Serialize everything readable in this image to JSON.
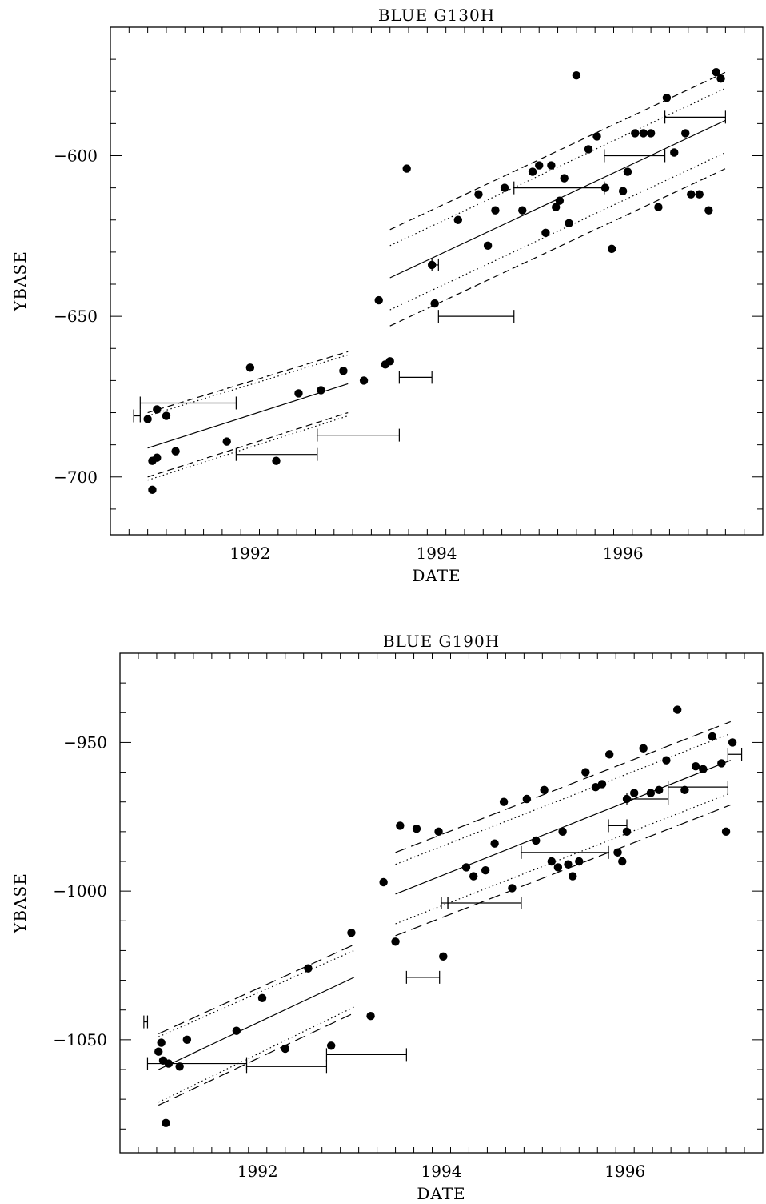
{
  "chart_data": [
    {
      "type": "scatter",
      "title": "BLUE G130H",
      "xlabel": "DATE",
      "ylabel": "YBASE",
      "xlim": [
        1990.5,
        1997.5
      ],
      "ylim": [
        -718,
        -560
      ],
      "x_ticks": [
        1992,
        1994,
        1996
      ],
      "x_tick_labels": [
        "1992",
        "1994",
        "1996"
      ],
      "y_ticks": [
        -600,
        -650,
        -700
      ],
      "y_tick_labels": [
        "−600",
        "−650",
        "−700"
      ],
      "grid": false,
      "legend": "none",
      "points": [
        [
          1990.9,
          -682
        ],
        [
          1990.95,
          -695
        ],
        [
          1991.0,
          -694
        ],
        [
          1991.0,
          -679
        ],
        [
          1991.1,
          -681
        ],
        [
          1991.2,
          -692
        ],
        [
          1990.95,
          -704
        ],
        [
          1991.75,
          -689
        ],
        [
          1992.0,
          -666
        ],
        [
          1992.28,
          -695
        ],
        [
          1992.52,
          -674
        ],
        [
          1992.76,
          -673
        ],
        [
          1993.0,
          -667
        ],
        [
          1993.22,
          -670
        ],
        [
          1993.38,
          -645
        ],
        [
          1993.45,
          -665
        ],
        [
          1993.5,
          -664
        ],
        [
          1993.68,
          -604
        ],
        [
          1993.95,
          -634
        ],
        [
          1993.98,
          -646
        ],
        [
          1994.23,
          -620
        ],
        [
          1994.45,
          -612
        ],
        [
          1994.55,
          -628
        ],
        [
          1994.63,
          -617
        ],
        [
          1994.73,
          -610
        ],
        [
          1994.92,
          -617
        ],
        [
          1995.03,
          -605
        ],
        [
          1995.1,
          -603
        ],
        [
          1995.17,
          -624
        ],
        [
          1995.23,
          -603
        ],
        [
          1995.28,
          -616
        ],
        [
          1995.32,
          -614
        ],
        [
          1995.37,
          -607
        ],
        [
          1995.42,
          -621
        ],
        [
          1995.5,
          -575
        ],
        [
          1995.63,
          -598
        ],
        [
          1995.72,
          -594
        ],
        [
          1995.81,
          -610
        ],
        [
          1995.88,
          -629
        ],
        [
          1996.0,
          -611
        ],
        [
          1996.05,
          -605
        ],
        [
          1996.13,
          -593
        ],
        [
          1996.22,
          -593
        ],
        [
          1996.3,
          -593
        ],
        [
          1996.38,
          -616
        ],
        [
          1996.47,
          -582
        ],
        [
          1996.55,
          -599
        ],
        [
          1996.67,
          -593
        ],
        [
          1996.73,
          -612
        ],
        [
          1996.82,
          -612
        ],
        [
          1996.92,
          -617
        ],
        [
          1997.0,
          -574
        ],
        [
          1997.05,
          -576
        ]
      ],
      "lines": [
        {
          "style": "solid",
          "segments": [
            [
              [
                1990.9,
                -691
              ],
              [
                1993.05,
                -671
              ]
            ],
            [
              [
                1993.5,
                -638
              ],
              [
                1997.1,
                -589
              ]
            ]
          ]
        },
        {
          "style": "dotted",
          "segments": [
            [
              [
                1990.9,
                -681
              ],
              [
                1993.05,
                -662
              ]
            ],
            [
              [
                1990.9,
                -701
              ],
              [
                1993.05,
                -681
              ]
            ],
            [
              [
                1993.5,
                -628
              ],
              [
                1997.1,
                -579
              ]
            ],
            [
              [
                1993.5,
                -648
              ],
              [
                1997.1,
                -599
              ]
            ]
          ]
        },
        {
          "style": "dashed",
          "segments": [
            [
              [
                1990.9,
                -680
              ],
              [
                1993.05,
                -661
              ]
            ],
            [
              [
                1990.9,
                -700
              ],
              [
                1993.05,
                -680
              ]
            ],
            [
              [
                1993.5,
                -623
              ],
              [
                1997.1,
                -574
              ]
            ],
            [
              [
                1993.5,
                -653
              ],
              [
                1997.1,
                -604
              ]
            ]
          ]
        }
      ],
      "error_bars": [
        {
          "x1": 1990.75,
          "x2": 1990.82,
          "y": -681
        },
        {
          "x1": 1990.82,
          "x2": 1991.85,
          "y": -677
        },
        {
          "x1": 1991.85,
          "x2": 1992.72,
          "y": -693
        },
        {
          "x1": 1992.72,
          "x2": 1993.6,
          "y": -687
        },
        {
          "x1": 1993.6,
          "x2": 1993.95,
          "y": -669
        },
        {
          "x1": 1994.02,
          "x2": 1994.83,
          "y": -650
        },
        {
          "x1": 1993.95,
          "x2": 1994.02,
          "y": -634
        },
        {
          "x1": 1994.83,
          "x2": 1995.8,
          "y": -610
        },
        {
          "x1": 1995.8,
          "x2": 1996.45,
          "y": -600
        },
        {
          "x1": 1996.45,
          "x2": 1997.1,
          "y": -588
        }
      ]
    },
    {
      "type": "scatter",
      "title": "BLUE G190H",
      "xlabel": "DATE",
      "ylabel": "YBASE",
      "xlim": [
        1990.5,
        1997.5
      ],
      "ylim": [
        -1088,
        -920
      ],
      "x_ticks": [
        1992,
        1994,
        1996
      ],
      "x_tick_labels": [
        "1992",
        "1994",
        "1996"
      ],
      "y_ticks": [
        -950,
        -1000,
        -1050
      ],
      "y_tick_labels": [
        "−950",
        "−1000",
        "−1050"
      ],
      "grid": false,
      "legend": "none",
      "points": [
        [
          1990.92,
          -1054
        ],
        [
          1990.95,
          -1051
        ],
        [
          1990.97,
          -1057
        ],
        [
          1991.03,
          -1058
        ],
        [
          1991.15,
          -1059
        ],
        [
          1991.23,
          -1050
        ],
        [
          1991.0,
          -1078
        ],
        [
          1991.77,
          -1047
        ],
        [
          1992.05,
          -1036
        ],
        [
          1992.3,
          -1053
        ],
        [
          1992.55,
          -1026
        ],
        [
          1992.8,
          -1052
        ],
        [
          1993.02,
          -1014
        ],
        [
          1993.23,
          -1042
        ],
        [
          1993.37,
          -997
        ],
        [
          1993.5,
          -1017
        ],
        [
          1993.55,
          -978
        ],
        [
          1993.73,
          -979
        ],
        [
          1993.97,
          -980
        ],
        [
          1994.02,
          -1022
        ],
        [
          1994.27,
          -992
        ],
        [
          1994.35,
          -995
        ],
        [
          1994.48,
          -993
        ],
        [
          1994.58,
          -984
        ],
        [
          1994.68,
          -970
        ],
        [
          1994.77,
          -999
        ],
        [
          1994.93,
          -969
        ],
        [
          1995.03,
          -983
        ],
        [
          1995.12,
          -966
        ],
        [
          1995.2,
          -990
        ],
        [
          1995.27,
          -992
        ],
        [
          1995.32,
          -980
        ],
        [
          1995.38,
          -991
        ],
        [
          1995.43,
          -995
        ],
        [
          1995.5,
          -990
        ],
        [
          1995.57,
          -960
        ],
        [
          1995.68,
          -965
        ],
        [
          1995.75,
          -964
        ],
        [
          1995.83,
          -954
        ],
        [
          1995.92,
          -987
        ],
        [
          1995.97,
          -990
        ],
        [
          1996.02,
          -969
        ],
        [
          1996.02,
          -980
        ],
        [
          1996.1,
          -967
        ],
        [
          1996.2,
          -952
        ],
        [
          1996.28,
          -967
        ],
        [
          1996.37,
          -966
        ],
        [
          1996.45,
          -956
        ],
        [
          1996.57,
          -939
        ],
        [
          1996.65,
          -966
        ],
        [
          1996.77,
          -958
        ],
        [
          1996.85,
          -959
        ],
        [
          1996.95,
          -948
        ],
        [
          1997.05,
          -957
        ],
        [
          1997.1,
          -980
        ],
        [
          1997.17,
          -950
        ]
      ],
      "lines": [
        {
          "style": "solid",
          "segments": [
            [
              [
                1990.92,
                -1060
              ],
              [
                1993.05,
                -1029
              ]
            ],
            [
              [
                1993.5,
                -1001
              ],
              [
                1997.15,
                -956
              ]
            ]
          ]
        },
        {
          "style": "dotted",
          "segments": [
            [
              [
                1990.92,
                -1049
              ],
              [
                1993.05,
                -1020
              ]
            ],
            [
              [
                1990.92,
                -1071
              ],
              [
                1993.05,
                -1039
              ]
            ],
            [
              [
                1993.5,
                -991
              ],
              [
                1997.15,
                -947
              ]
            ],
            [
              [
                1993.5,
                -1011
              ],
              [
                1997.15,
                -967
              ]
            ]
          ]
        },
        {
          "style": "dashed",
          "segments": [
            [
              [
                1990.92,
                -1048
              ],
              [
                1993.05,
                -1018
              ]
            ],
            [
              [
                1990.92,
                -1072
              ],
              [
                1993.05,
                -1041
              ]
            ],
            [
              [
                1993.5,
                -987
              ],
              [
                1997.15,
                -943
              ]
            ],
            [
              [
                1993.5,
                -1015
              ],
              [
                1997.15,
                -971
              ]
            ]
          ]
        }
      ],
      "error_bars": [
        {
          "x1": 1990.76,
          "x2": 1990.8,
          "y": -1044
        },
        {
          "x1": 1990.8,
          "x2": 1991.88,
          "y": -1058
        },
        {
          "x1": 1991.88,
          "x2": 1992.75,
          "y": -1059
        },
        {
          "x1": 1992.75,
          "x2": 1993.62,
          "y": -1055
        },
        {
          "x1": 1993.62,
          "x2": 1993.98,
          "y": -1029
        },
        {
          "x1": 1994.0,
          "x2": 1994.07,
          "y": -1004
        },
        {
          "x1": 1994.07,
          "x2": 1994.87,
          "y": -1004
        },
        {
          "x1": 1994.87,
          "x2": 1995.82,
          "y": -987
        },
        {
          "x1": 1995.82,
          "x2": 1996.02,
          "y": -978
        },
        {
          "x1": 1996.02,
          "x2": 1996.47,
          "y": -969
        },
        {
          "x1": 1996.47,
          "x2": 1997.12,
          "y": -965
        },
        {
          "x1": 1997.12,
          "x2": 1997.27,
          "y": -954
        }
      ]
    }
  ]
}
